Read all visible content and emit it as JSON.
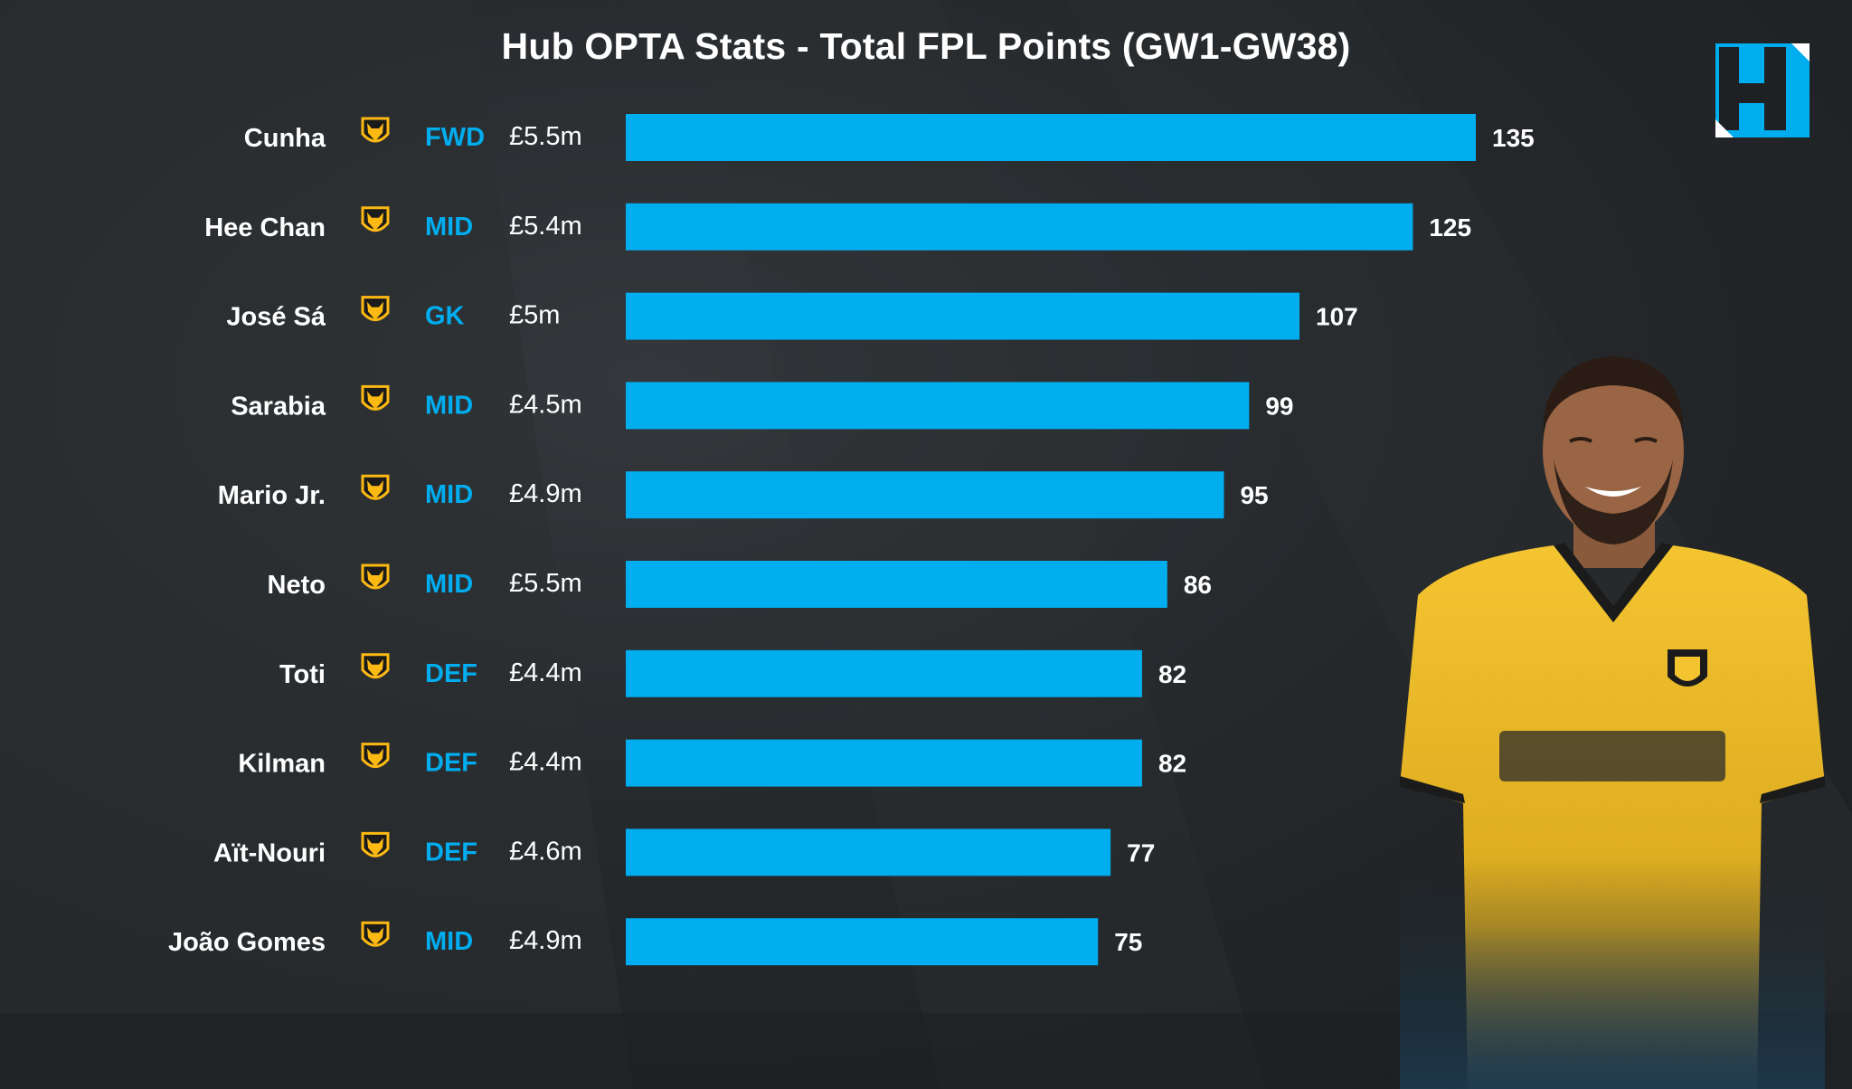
{
  "chart_data": {
    "type": "bar",
    "orientation": "horizontal",
    "title": "Hub OPTA Stats - Total FPL Points (GW1-GW38)",
    "categories": [
      "Cunha",
      "Hee Chan",
      "José Sá",
      "Sarabia",
      "Mario Jr.",
      "Neto",
      "Toti",
      "Kilman",
      "Aït-Nouri",
      "João Gomes"
    ],
    "positions": [
      "FWD",
      "MID",
      "GK",
      "MID",
      "MID",
      "MID",
      "DEF",
      "DEF",
      "DEF",
      "MID"
    ],
    "prices": [
      "£5.5m",
      "£5.4m",
      "£5m",
      "£4.5m",
      "£4.9m",
      "£5.5m",
      "£4.4m",
      "£4.4m",
      "£4.6m",
      "£4.9m"
    ],
    "values": [
      135,
      125,
      107,
      99,
      95,
      86,
      82,
      82,
      77,
      75
    ],
    "xlim": [
      0,
      135
    ],
    "grid": false,
    "colors": {
      "bar": "#00adef",
      "position_text": "#00adef",
      "badge": "#fdb913",
      "background": "#26292c"
    }
  },
  "icons": {
    "team_badge": "wolves-badge-icon",
    "logo": "hub-logo-icon"
  }
}
